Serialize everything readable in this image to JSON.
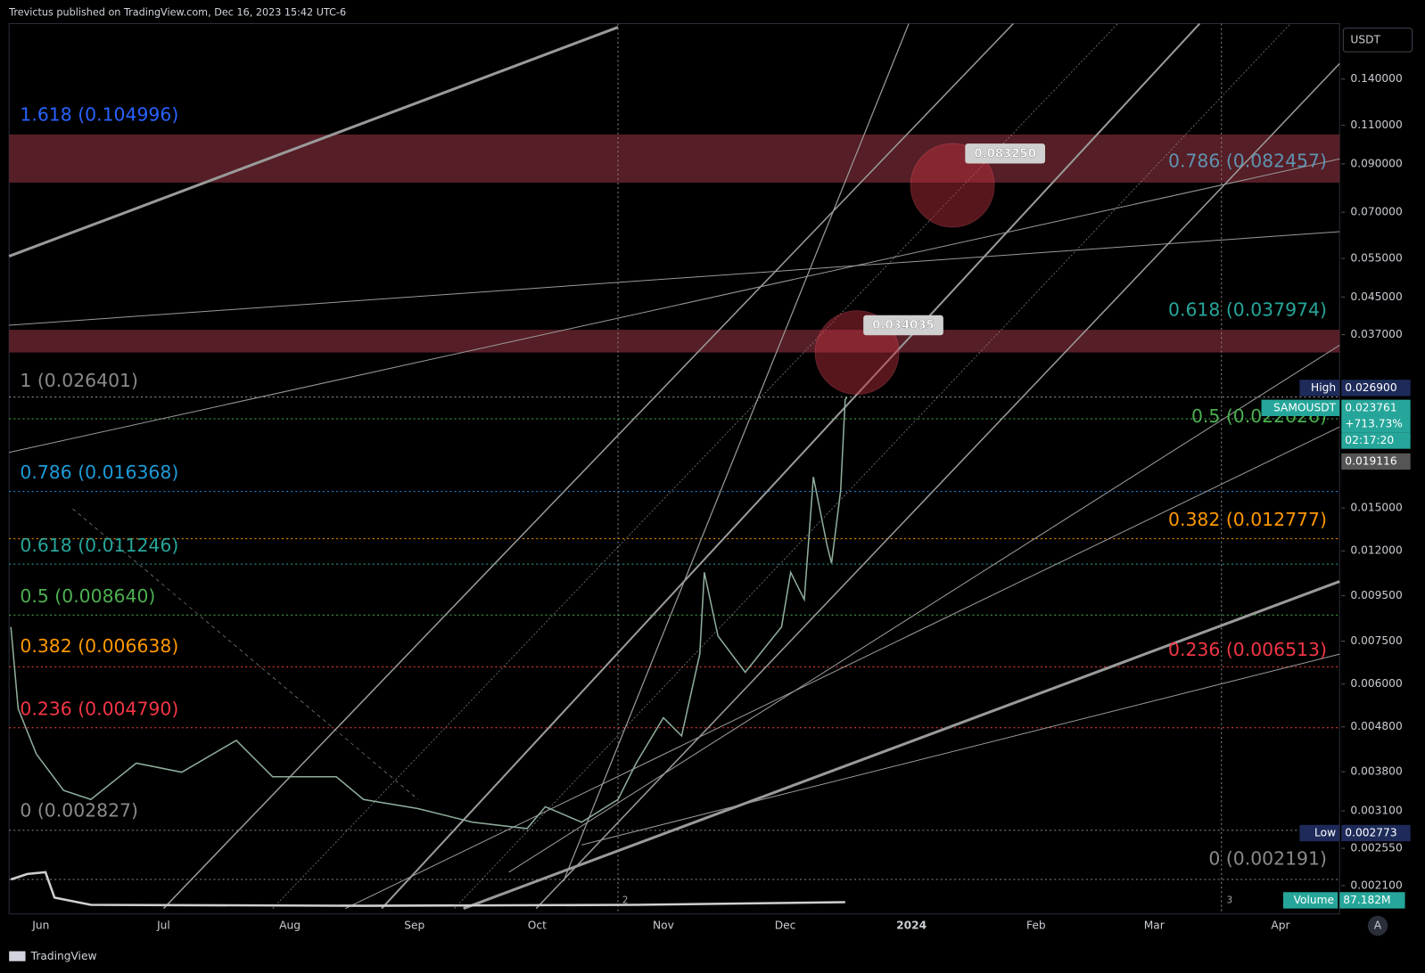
{
  "header": "Trevictus published on TradingView.com, Dec 16, 2023 15:42 UTC-6",
  "currency": "USDT",
  "price_axis": [
    "0.140000",
    "0.110000",
    "0.090000",
    "0.070000",
    "0.055000",
    "0.045000",
    "0.037000",
    "0.015000",
    "0.012000",
    "0.009500",
    "0.007500",
    "0.006000",
    "0.004800",
    "0.003800",
    "0.003100",
    "0.002550",
    "0.002100"
  ],
  "time_axis": [
    "Jun",
    "Jul",
    "Aug",
    "Sep",
    "Oct",
    "Nov",
    "Dec",
    "2024",
    "Feb",
    "Mar",
    "Apr"
  ],
  "fib_left": [
    "1.618 (0.104996)",
    "1 (0.026401)",
    "0.786 (0.016368)",
    "0.618 (0.011246)",
    "0.5 (0.008640)",
    "0.382 (0.006638)",
    "0.236 (0.004790)",
    "0 (0.002827)"
  ],
  "fib_right": [
    "0.786 (0.082457)",
    "0.618 (0.037974)",
    "0.5 (0.022026)",
    "0.382 (0.012777)",
    "0.236 (0.006513)",
    "0 (0.002191)"
  ],
  "targets": [
    "0.083250",
    "0.034035"
  ],
  "high": {
    "label": "High",
    "value": "0.026900"
  },
  "symbol": {
    "name": "SAMOUSDT",
    "price": "0.023761",
    "change": "+713.73%",
    "countdown": "02:17:20"
  },
  "crosshair_price": "0.019116",
  "low": {
    "label": "Low",
    "value": "0.002773"
  },
  "volume": {
    "label": "Volume",
    "value": "87.182M"
  },
  "markers": [
    "2",
    "3"
  ],
  "scale_button": "A",
  "footer": "TradingView"
}
